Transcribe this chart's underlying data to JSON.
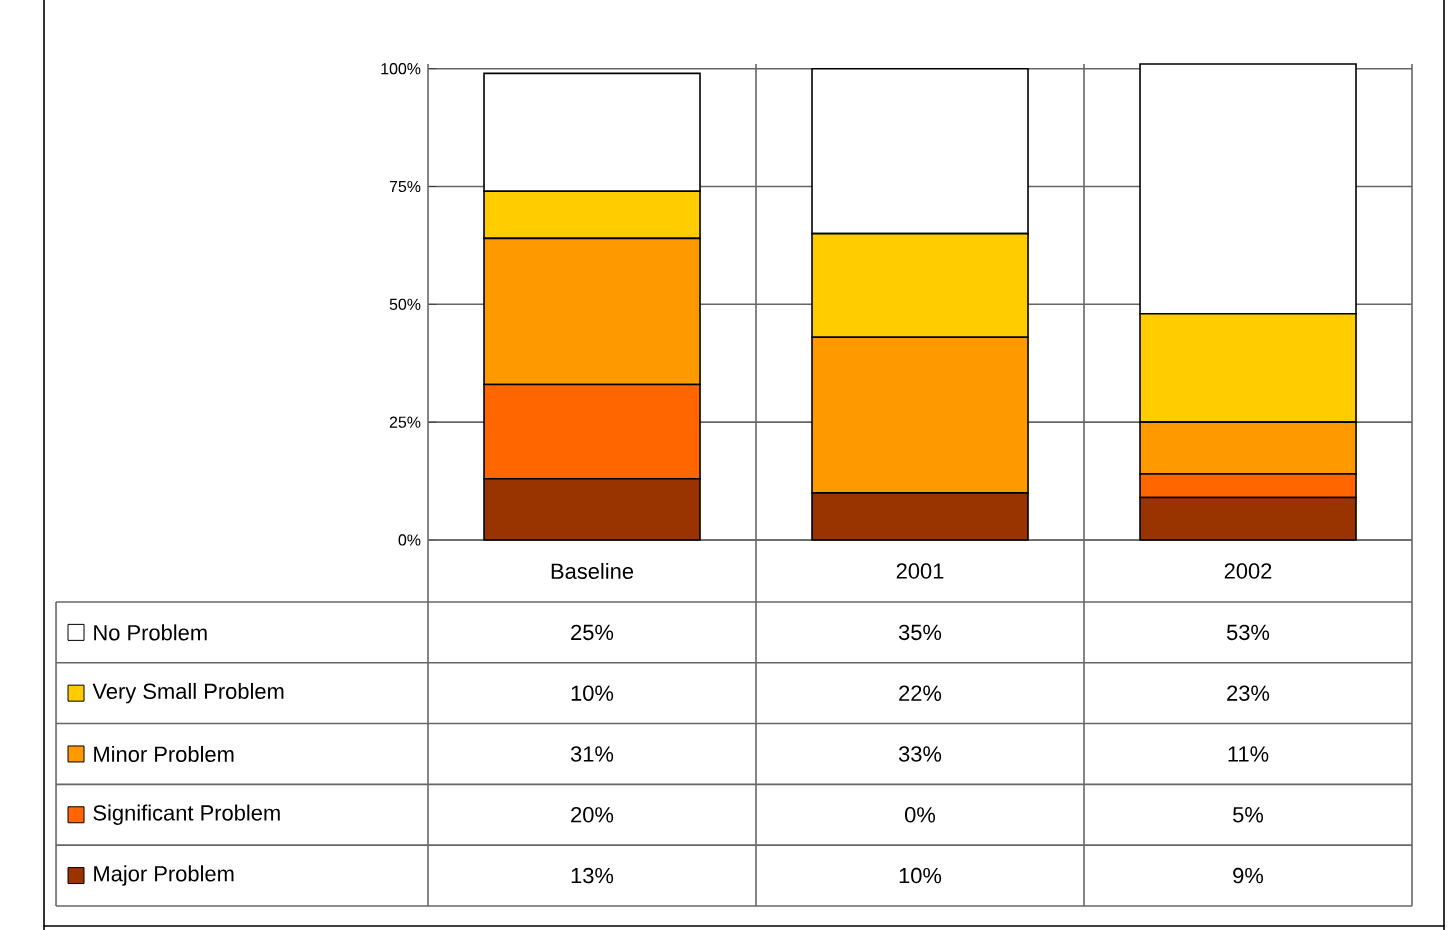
{
  "chart_data": {
    "type": "bar",
    "stacked": true,
    "categories": [
      "Baseline",
      "2001",
      "2002"
    ],
    "series": [
      {
        "name": "Major Problem",
        "color": "#993300",
        "values": [
          13,
          10,
          9
        ],
        "value_labels": [
          "13%",
          "10%",
          "9%"
        ]
      },
      {
        "name": "Significant Problem",
        "color": "#ff6600",
        "values": [
          20,
          0,
          5
        ],
        "value_labels": [
          "20%",
          "0%",
          "5%"
        ]
      },
      {
        "name": "Minor Problem",
        "color": "#ff9900",
        "values": [
          31,
          33,
          11
        ],
        "value_labels": [
          "31%",
          "33%",
          "11%"
        ]
      },
      {
        "name": "Very Small Problem",
        "color": "#ffcc00",
        "values": [
          10,
          22,
          23
        ],
        "value_labels": [
          "10%",
          "22%",
          "23%"
        ]
      },
      {
        "name": "No Problem",
        "color": "#ffffff",
        "values": [
          25,
          35,
          53
        ],
        "value_labels": [
          "25%",
          "35%",
          "53%"
        ]
      }
    ],
    "ylim": [
      0,
      101
    ],
    "yticks": [
      {
        "value": 0,
        "label": "0%"
      },
      {
        "value": 25,
        "label": "25%"
      },
      {
        "value": 50,
        "label": "50%"
      },
      {
        "value": 75,
        "label": "75%"
      },
      {
        "value": 100,
        "label": "100%"
      }
    ],
    "grid": "y",
    "legend": "bottom"
  }
}
